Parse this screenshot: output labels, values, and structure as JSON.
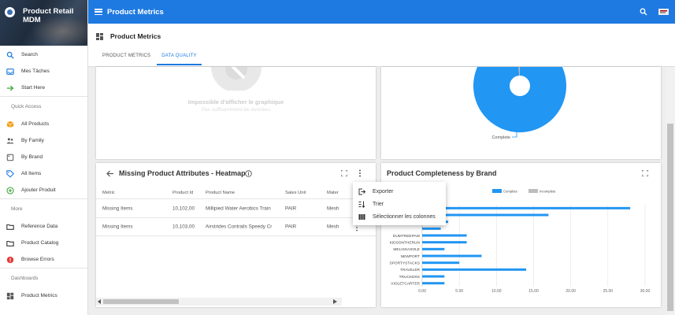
{
  "app": {
    "title": "Product Retail MDM"
  },
  "topbar": {
    "title": "Product Metrics"
  },
  "sidebar": {
    "items_top": [
      {
        "label": "Search",
        "icon": "search-icon",
        "color": "#1e7ae0"
      },
      {
        "label": "Mes Tâches",
        "icon": "inbox-icon",
        "color": "#1e7ae0"
      },
      {
        "label": "Start Here",
        "icon": "arrow-right-icon",
        "color": "#3aa535"
      }
    ],
    "section_quick": "Quick Access",
    "items_quick": [
      {
        "label": "All Products",
        "icon": "cube-icon",
        "color": "#f39c12"
      },
      {
        "label": "By Family",
        "icon": "family-icon",
        "color": "#555555"
      },
      {
        "label": "By Brand",
        "icon": "brand-icon",
        "color": "#555555"
      },
      {
        "label": "All Items",
        "icon": "tag-icon",
        "color": "#1e7ae0"
      },
      {
        "label": "Ajouter Produit",
        "icon": "plus-circle-icon",
        "color": "#3aa535"
      }
    ],
    "section_more": "More",
    "items_more": [
      {
        "label": "Reference Data",
        "icon": "folder-icon",
        "color": "#333333"
      },
      {
        "label": "Product Catalog",
        "icon": "folder-icon",
        "color": "#333333"
      },
      {
        "label": "Browse Errors",
        "icon": "error-icon",
        "color": "#e53935"
      }
    ],
    "section_dash": "Dashboards",
    "items_dash": [
      {
        "label": "Product Metrics",
        "icon": "dashboard-icon",
        "color": "#555555"
      }
    ]
  },
  "page": {
    "title": "Product Metrics",
    "tabs": [
      {
        "label": "PRODUCT METRICS",
        "active": false
      },
      {
        "label": "DATA QUALITY",
        "active": true
      }
    ]
  },
  "empty_card": {
    "message": "Impossible d'afficher le graphique",
    "sub": "Pas suffisamment de données"
  },
  "donut_card": {
    "chart_data": {
      "type": "pie",
      "labels": [
        "Complete",
        "Incomplete"
      ],
      "values": [
        99,
        1
      ],
      "colors": [
        "#2196f3",
        "#bdbdbd"
      ]
    }
  },
  "heatmap_card": {
    "title": "Missing Product Attributes - Heatmap",
    "columns": [
      "Metric",
      "Product Id",
      "Product Name",
      "Sales Unit",
      "Mater"
    ],
    "rows": [
      [
        "Missing Items",
        "10,102,00",
        "Millipied Water Aerobics Train",
        "PAIR",
        "Mesh"
      ],
      [
        "Missing Items",
        "10,103,00",
        "Airstrides Contrails Speedy Cr",
        "PAIR",
        "Mesh"
      ]
    ]
  },
  "context_menu": {
    "items": [
      {
        "label": "Exporter",
        "icon": "export-icon"
      },
      {
        "label": "Trier",
        "icon": "sort-icon"
      },
      {
        "label": "Sélectionner les colonnes",
        "icon": "columns-icon"
      }
    ]
  },
  "bar_card": {
    "title": "Product Completeness by Brand",
    "chart_data": {
      "type": "bar",
      "orientation": "horizontal",
      "stacked": true,
      "categories": [
        "",
        "",
        "",
        "",
        "DUMTREEPAW",
        "KIDSONTHERUN",
        "MELISSASOLE",
        "NEWPORT",
        "SPORTYSTACKS",
        "TRAVELER",
        "TRUCKERS",
        "VIOLETCARTER"
      ],
      "series": [
        {
          "name": "Complete",
          "color": "#2196f3",
          "values": [
            28,
            17,
            3.5,
            2.5,
            6,
            6,
            3,
            8,
            5,
            14,
            3,
            3
          ]
        },
        {
          "name": "Incomplete",
          "color": "#bdbdbd",
          "values": [
            0,
            0,
            0,
            0,
            0,
            0,
            0,
            0,
            0,
            0,
            0,
            0
          ]
        }
      ],
      "xlim": [
        0,
        30
      ],
      "xticks": [
        "0.00",
        "5.00",
        "10.00",
        "15.00",
        "20.00",
        "25.00",
        "30.00"
      ],
      "legend_position": "top-center"
    }
  }
}
